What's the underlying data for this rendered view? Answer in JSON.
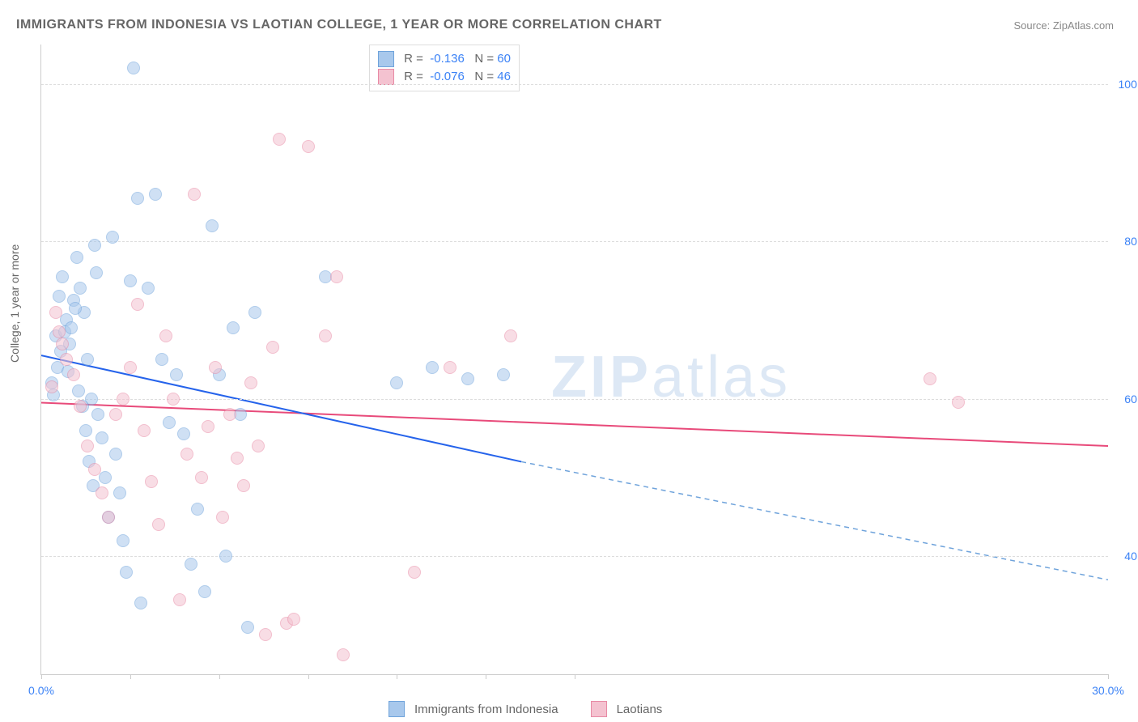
{
  "title": "IMMIGRANTS FROM INDONESIA VS LAOTIAN COLLEGE, 1 YEAR OR MORE CORRELATION CHART",
  "source": "Source: ZipAtlas.com",
  "y_axis_label": "College, 1 year or more",
  "watermark": {
    "zip": "ZIP",
    "atlas": "atlas"
  },
  "chart": {
    "type": "scatter",
    "xlim": [
      0,
      30
    ],
    "ylim": [
      25,
      105
    ],
    "x_ticks": [
      0,
      2.5,
      5,
      7.5,
      10,
      12.5,
      15,
      30
    ],
    "y_ticks": [
      40,
      60,
      80,
      100
    ],
    "x_tick_labels": {
      "0": "0.0%",
      "30": "30.0%"
    },
    "y_tick_labels": {
      "40": "40.0%",
      "60": "60.0%",
      "80": "80.0%",
      "100": "100.0%"
    },
    "grid_y": [
      40,
      60,
      80,
      100
    ],
    "background_color": "#ffffff",
    "grid_color": "#dddddd",
    "point_radius": 8,
    "point_opacity": 0.55,
    "series": [
      {
        "name": "Immigrants from Indonesia",
        "color_fill": "#a8c8ec",
        "color_stroke": "#6fa3db",
        "R": "-0.136",
        "N": "60",
        "trend": {
          "x1": 0,
          "y1": 65.5,
          "x2": 13.5,
          "y2": 52,
          "x2_ext": 30,
          "y2_ext": 37,
          "solid_color": "#2563eb",
          "dash_color": "#6fa3db",
          "width": 2
        },
        "points": [
          [
            0.3,
            62
          ],
          [
            0.4,
            68
          ],
          [
            0.5,
            73
          ],
          [
            0.6,
            75.5
          ],
          [
            0.7,
            70
          ],
          [
            0.8,
            67
          ],
          [
            0.9,
            72.5
          ],
          [
            1.0,
            78
          ],
          [
            1.1,
            74
          ],
          [
            1.2,
            71
          ],
          [
            1.3,
            65
          ],
          [
            1.4,
            60
          ],
          [
            1.5,
            79.5
          ],
          [
            1.6,
            58
          ],
          [
            1.7,
            55
          ],
          [
            1.8,
            50
          ],
          [
            1.9,
            45
          ],
          [
            2.0,
            80.5
          ],
          [
            2.1,
            53
          ],
          [
            2.2,
            48
          ],
          [
            2.3,
            42
          ],
          [
            2.4,
            38
          ],
          [
            2.5,
            75
          ],
          [
            2.6,
            102
          ],
          [
            2.7,
            85.5
          ],
          [
            2.8,
            34
          ],
          [
            3.0,
            74
          ],
          [
            3.2,
            86
          ],
          [
            3.4,
            65
          ],
          [
            3.6,
            57
          ],
          [
            3.8,
            63
          ],
          [
            4.0,
            55.5
          ],
          [
            4.2,
            39
          ],
          [
            4.4,
            46
          ],
          [
            4.6,
            35.5
          ],
          [
            4.8,
            82
          ],
          [
            5.0,
            63
          ],
          [
            5.2,
            40
          ],
          [
            5.4,
            69
          ],
          [
            5.6,
            58
          ],
          [
            5.8,
            31
          ],
          [
            6.0,
            71
          ],
          [
            8.0,
            75.5
          ],
          [
            10.0,
            62
          ],
          [
            11.0,
            64
          ],
          [
            12.0,
            62.5
          ],
          [
            13.0,
            63
          ],
          [
            0.35,
            60.5
          ],
          [
            0.45,
            64
          ],
          [
            0.55,
            66
          ],
          [
            0.65,
            68.5
          ],
          [
            0.75,
            63.5
          ],
          [
            0.85,
            69
          ],
          [
            0.95,
            71.5
          ],
          [
            1.05,
            61
          ],
          [
            1.15,
            59
          ],
          [
            1.25,
            56
          ],
          [
            1.35,
            52
          ],
          [
            1.45,
            49
          ],
          [
            1.55,
            76
          ]
        ]
      },
      {
        "name": "Laotians",
        "color_fill": "#f4c2d0",
        "color_stroke": "#e88aa5",
        "R": "-0.076",
        "N": "46",
        "trend": {
          "x1": 0,
          "y1": 59.5,
          "x2": 30,
          "y2": 54,
          "solid_color": "#e84a7a",
          "width": 2
        },
        "points": [
          [
            0.3,
            61.5
          ],
          [
            0.5,
            68.5
          ],
          [
            0.7,
            65
          ],
          [
            0.9,
            63
          ],
          [
            1.1,
            59
          ],
          [
            1.3,
            54
          ],
          [
            1.5,
            51
          ],
          [
            1.7,
            48
          ],
          [
            1.9,
            45
          ],
          [
            2.1,
            58
          ],
          [
            2.3,
            60
          ],
          [
            2.5,
            64
          ],
          [
            2.7,
            72
          ],
          [
            2.9,
            56
          ],
          [
            3.1,
            49.5
          ],
          [
            3.3,
            44
          ],
          [
            3.5,
            68
          ],
          [
            3.7,
            60
          ],
          [
            3.9,
            34.5
          ],
          [
            4.1,
            53
          ],
          [
            4.3,
            86
          ],
          [
            4.5,
            50
          ],
          [
            4.7,
            56.5
          ],
          [
            4.9,
            64
          ],
          [
            5.1,
            45
          ],
          [
            5.3,
            58
          ],
          [
            5.5,
            52.5
          ],
          [
            5.7,
            49
          ],
          [
            5.9,
            62
          ],
          [
            6.1,
            54
          ],
          [
            6.3,
            30
          ],
          [
            6.5,
            66.5
          ],
          [
            6.7,
            93
          ],
          [
            6.9,
            31.5
          ],
          [
            7.1,
            32
          ],
          [
            7.5,
            92
          ],
          [
            8.0,
            68
          ],
          [
            8.3,
            75.5
          ],
          [
            8.5,
            27.5
          ],
          [
            10.5,
            38
          ],
          [
            11.5,
            64
          ],
          [
            13.2,
            68
          ],
          [
            25.0,
            62.5
          ],
          [
            25.8,
            59.5
          ],
          [
            0.4,
            71
          ],
          [
            0.6,
            67
          ]
        ]
      }
    ]
  },
  "bottom_legend": [
    {
      "label": "Immigrants from Indonesia",
      "fill": "#a8c8ec",
      "stroke": "#6fa3db"
    },
    {
      "label": "Laotians",
      "fill": "#f4c2d0",
      "stroke": "#e88aa5"
    }
  ]
}
